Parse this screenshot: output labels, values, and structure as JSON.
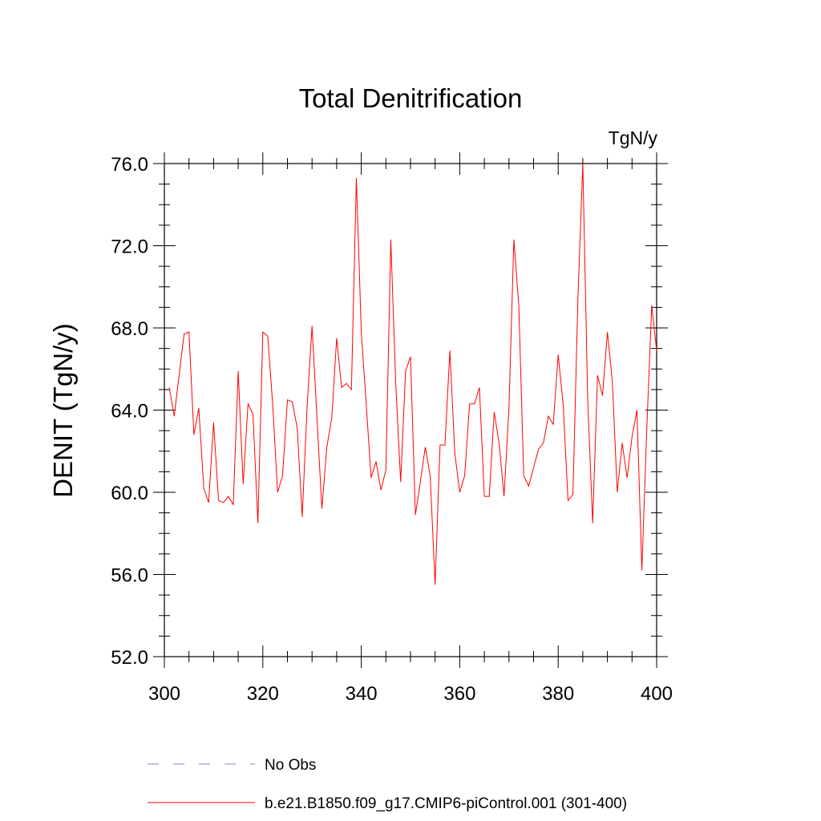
{
  "chart_data": {
    "type": "line",
    "title": "Total Denitrification",
    "units_label": "TgN/y",
    "xlabel": "",
    "ylabel": "DENIT  (TgN/y)",
    "xlim": [
      300,
      400
    ],
    "ylim": [
      52,
      76
    ],
    "x_ticks": [
      300,
      320,
      340,
      360,
      380,
      400
    ],
    "x_tick_labels": [
      "300",
      "320",
      "340",
      "360",
      "380",
      "400"
    ],
    "y_ticks": [
      52,
      56,
      60,
      64,
      68,
      72,
      76
    ],
    "y_tick_labels": [
      "52.0",
      "56.0",
      "60.0",
      "64.0",
      "68.0",
      "72.0",
      "76.0"
    ],
    "series": [
      {
        "name": "b.e21.B1850.f09_g17.CMIP6-piControl.001 (301-400)",
        "color": "#ff0000",
        "style": "solid",
        "x": [
          301,
          302,
          303,
          304,
          305,
          306,
          307,
          308,
          309,
          310,
          311,
          312,
          313,
          314,
          315,
          316,
          317,
          318,
          319,
          320,
          321,
          322,
          323,
          324,
          325,
          326,
          327,
          328,
          329,
          330,
          331,
          332,
          333,
          334,
          335,
          336,
          337,
          338,
          339,
          340,
          341,
          342,
          343,
          344,
          345,
          346,
          347,
          348,
          349,
          350,
          351,
          352,
          353,
          354,
          355,
          356,
          357,
          358,
          359,
          360,
          361,
          362,
          363,
          364,
          365,
          366,
          367,
          368,
          369,
          370,
          371,
          372,
          373,
          374,
          375,
          376,
          377,
          378,
          379,
          380,
          381,
          382,
          383,
          384,
          385,
          386,
          387,
          388,
          389,
          390,
          391,
          392,
          393,
          394,
          395,
          396,
          397,
          398,
          399,
          400
        ],
        "values": [
          65.1,
          63.7,
          65.7,
          67.7,
          67.8,
          62.8,
          64.1,
          60.2,
          59.5,
          63.4,
          59.6,
          59.5,
          59.8,
          59.4,
          65.9,
          60.4,
          64.3,
          63.8,
          58.5,
          67.8,
          67.6,
          64.3,
          60.0,
          60.8,
          64.5,
          64.4,
          63.1,
          58.8,
          64.2,
          68.1,
          63.6,
          59.2,
          62.2,
          63.6,
          67.5,
          65.1,
          65.3,
          65.0,
          75.3,
          67.8,
          64.3,
          60.7,
          61.5,
          60.1,
          61.1,
          72.3,
          65.3,
          60.5,
          65.9,
          66.6,
          58.9,
          60.5,
          62.2,
          60.8,
          55.5,
          62.3,
          62.3,
          66.9,
          61.9,
          60.0,
          60.8,
          64.3,
          64.3,
          65.1,
          59.8,
          59.8,
          63.9,
          62.4,
          59.8,
          64.1,
          72.3,
          69.1,
          60.8,
          60.3,
          61.2,
          62.1,
          62.4,
          63.7,
          63.3,
          66.7,
          64.3,
          59.6,
          59.9,
          69.4,
          76.0,
          64.5,
          58.5,
          65.7,
          64.7,
          67.8,
          65.4,
          60.0,
          62.4,
          60.7,
          62.7,
          64.0,
          56.2,
          63.1,
          69.1,
          66.9
        ]
      },
      {
        "name": "No Obs",
        "color": "#8a84c4",
        "style": "dashed",
        "x": [],
        "values": []
      }
    ],
    "legend_position": "bottom-left",
    "grid": false
  }
}
